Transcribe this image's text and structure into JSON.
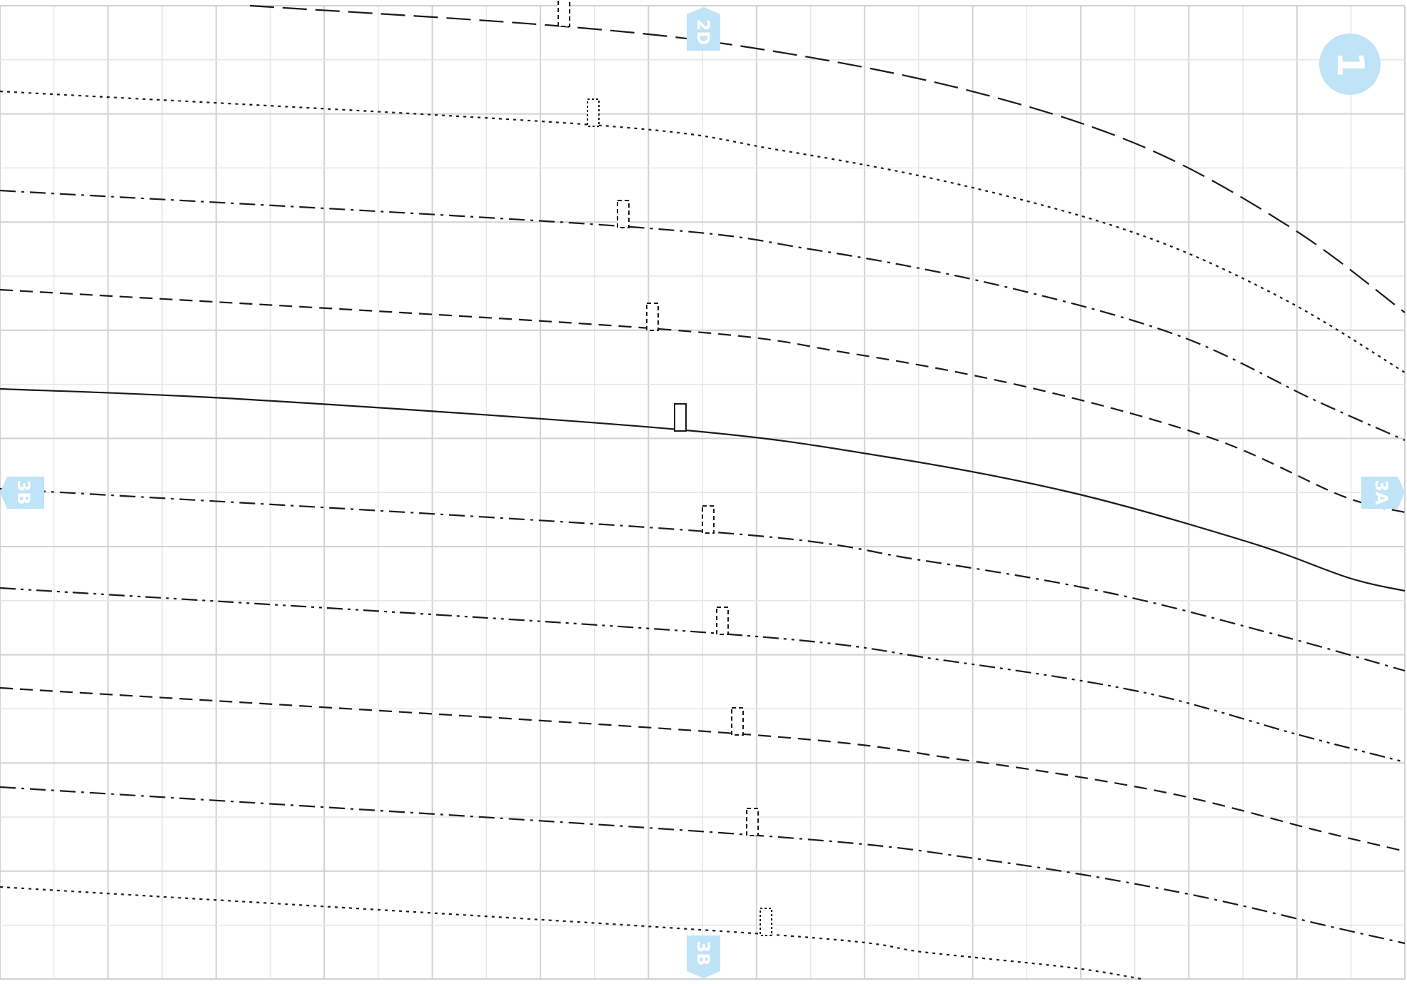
{
  "markers": {
    "sheet": "1",
    "top": "2D",
    "left": "3B",
    "right": "3A",
    "bottom": "3B"
  },
  "colors": {
    "grid_minor": "#e6e6e6",
    "grid_major": "#d2d2d2",
    "marker_fill": "#bfe3f7",
    "line": "#1a1a1a"
  },
  "curves": [
    {
      "dash": "long-dash"
    },
    {
      "dash": "dotted"
    },
    {
      "dash": "dash-dot"
    },
    {
      "dash": "dashed"
    },
    {
      "dash": "solid"
    },
    {
      "dash": "dash-dot"
    },
    {
      "dash": "dash-dot-dot"
    },
    {
      "dash": "dashed"
    },
    {
      "dash": "dash-dot"
    },
    {
      "dash": "dotted"
    }
  ]
}
